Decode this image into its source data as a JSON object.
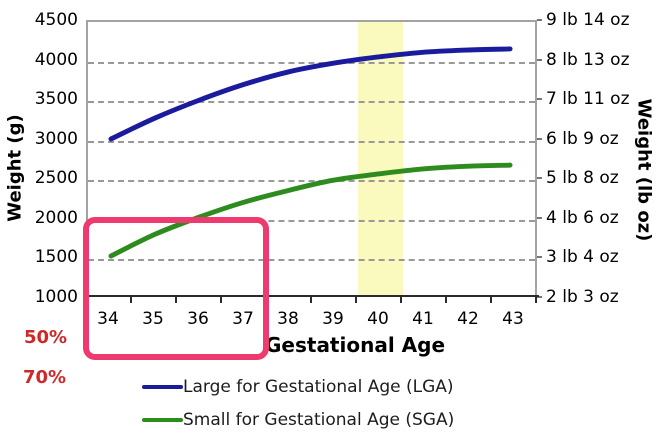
{
  "chart_data": {
    "type": "line",
    "title": "",
    "xlabel": "Gestational Age",
    "ylabel_left": "Weight (g)",
    "ylabel_right": "Weight (lb oz)",
    "x": [
      34,
      35,
      36,
      37,
      38,
      39,
      40,
      41,
      42,
      43
    ],
    "series": [
      {
        "name": "Large for Gestational Age (LGA)",
        "color": "#1b1b9e",
        "values": [
          3000,
          3270,
          3500,
          3700,
          3860,
          3970,
          4050,
          4110,
          4140,
          4155
        ]
      },
      {
        "name": "Small for Gestational Age (SGA)",
        "color": "#2e8b1e",
        "values": [
          1500,
          1780,
          2000,
          2190,
          2340,
          2470,
          2550,
          2615,
          2650,
          2665
        ]
      }
    ],
    "ylim": [
      1000,
      4500
    ],
    "y_left_ticks": [
      "4500",
      "4000",
      "3500",
      "3000",
      "2500",
      "2000",
      "1500",
      "1000"
    ],
    "y_right_ticks": [
      "9 lb 14 oz",
      "8 lb 13 oz",
      "7 lb 11 oz",
      "6 lb 9 oz",
      "5 lb 8 oz",
      "4 lb 6 oz",
      "3 lb 4 oz",
      "2 lb 3 oz"
    ],
    "grid": "horizontal-dashed",
    "legend_position": "bottom",
    "highlight_band": {
      "x_start": 39.5,
      "x_end": 40.5,
      "color": "#fafabe"
    },
    "annotation_box": {
      "weeks_covered": [
        34,
        35,
        36,
        37
      ],
      "y_top": 2000,
      "color": "#ee3a6e"
    },
    "annotations": [
      {
        "text": "50%",
        "color": "#cc2a2a"
      },
      {
        "text": "70%",
        "color": "#cc2a2a"
      }
    ]
  },
  "legend": {
    "items": [
      {
        "label": "Large for Gestational Age (LGA)",
        "color": "#1b1b9e"
      },
      {
        "label": "Small for Gestational Age (SGA)",
        "color": "#2e8b1e"
      }
    ]
  }
}
